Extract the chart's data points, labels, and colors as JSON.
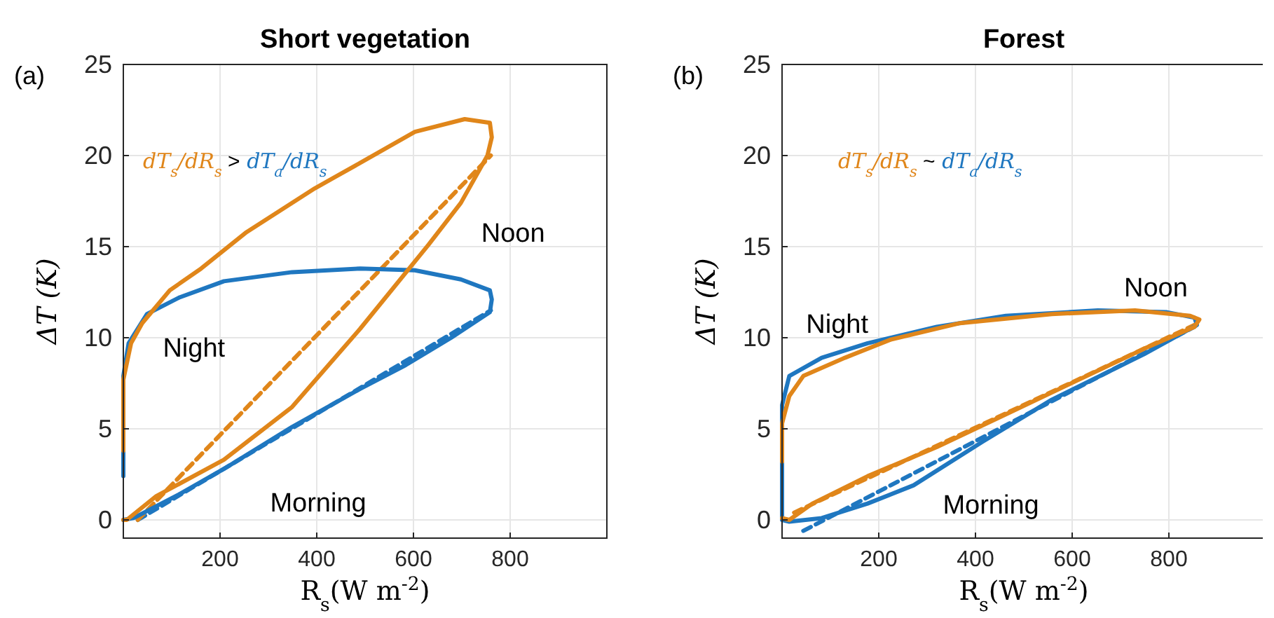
{
  "chart_data": [
    {
      "type": "line",
      "title": "Short vegetation",
      "xlabel": "R$_{s}$(W m$^{-2}$)",
      "ylabel": "ΔT (K)",
      "xlim": [
        0,
        1000
      ],
      "ylim": [
        -1,
        25
      ],
      "xticks": [
        200,
        400,
        600,
        800
      ],
      "yticks": [
        0,
        5,
        10,
        15,
        20,
        25
      ],
      "grid": true,
      "annotations": [
        "(a)",
        "dT$_{s}$/dR$_{s}$",
        ">",
        "dT$_{a}$/dR$_{s}$",
        "Night",
        "Noon",
        "Morning"
      ],
      "series": [
        {
          "color": "#e0861a",
          "x": [
            0,
            0,
            16,
            39,
            96,
            161,
            255,
            396,
            490,
            603,
            706,
            758,
            762,
            753,
            698,
            631,
            490,
            349,
            208,
            68,
            7,
            0
          ],
          "values": [
            3.8,
            7.7,
            9.7,
            10.8,
            12.6,
            13.8,
            15.8,
            18.2,
            19.6,
            21.3,
            22.0,
            21.8,
            21.0,
            20.0,
            17.4,
            15.1,
            10.5,
            6.2,
            3.3,
            1.3,
            0,
            0
          ]
        },
        {
          "color": "#1f77c0",
          "x": [
            0,
            0,
            11,
            49,
            115,
            208,
            349,
            490,
            603,
            698,
            758,
            762,
            758,
            678,
            584,
            490,
            349,
            208,
            115,
            21,
            0
          ],
          "values": [
            2.4,
            7.9,
            9.7,
            11.3,
            12.2,
            13.1,
            13.6,
            13.8,
            13.7,
            13.2,
            12.6,
            12.1,
            11.4,
            10.0,
            8.5,
            7.2,
            5.1,
            2.8,
            1.4,
            0.1,
            0
          ]
        },
        {
          "color": "#e0861a",
          "line_style": "dashed",
          "x": [
            30,
            760
          ],
          "values": [
            0,
            20
          ]
        },
        {
          "color": "#1f77c0",
          "line_style": "dashed",
          "x": [
            30,
            760
          ],
          "values": [
            0,
            11.5
          ]
        }
      ]
    },
    {
      "type": "line",
      "title": "Forest",
      "xlabel": "R$_{s}$(W m$^{-2}$)",
      "ylabel": "ΔT (K)",
      "xlim": [
        0,
        1000
      ],
      "ylim": [
        -1,
        25
      ],
      "xticks": [
        200,
        400,
        600,
        800
      ],
      "yticks": [
        0,
        5,
        10,
        15,
        20,
        25
      ],
      "grid": true,
      "annotations": [
        "(b)",
        "dT$_{s}$/dR$_{s}$",
        "~",
        "dT$_{a}$/dR$_{s}$",
        "Night",
        "Noon",
        "Morning"
      ],
      "series": [
        {
          "color": "#e0861a",
          "x": [
            0,
            0,
            15,
            44,
            130,
            225,
            368,
            558,
            730,
            844,
            863,
            853,
            749,
            606,
            463,
            320,
            177,
            63,
            15,
            0
          ],
          "values": [
            3.2,
            5.3,
            6.8,
            7.9,
            8.9,
            9.9,
            10.8,
            11.3,
            11.5,
            11.2,
            11.0,
            10.6,
            9.4,
            7.6,
            5.8,
            4.0,
            2.4,
            0.9,
            0,
            0.1
          ]
        },
        {
          "color": "#1f77c0",
          "x": [
            0,
            0,
            0,
            15,
            82,
            177,
            320,
            463,
            653,
            796,
            853,
            858,
            749,
            558,
            415,
            272,
            177,
            82,
            15,
            0
          ],
          "values": [
            1.7,
            0,
            6.3,
            7.9,
            8.9,
            9.7,
            10.6,
            11.2,
            11.5,
            11.4,
            11.1,
            10.7,
            9.1,
            6.6,
            4.3,
            1.9,
            0.9,
            0.1,
            -0.1,
            0
          ]
        },
        {
          "color": "#e0861a",
          "line_style": "dashed",
          "x": [
            25,
            853
          ],
          "values": [
            0.4,
            10.7
          ]
        },
        {
          "color": "#1f77c0",
          "line_style": "dashed",
          "x": [
            44,
            853
          ],
          "values": [
            -0.6,
            10.6
          ]
        }
      ]
    }
  ]
}
